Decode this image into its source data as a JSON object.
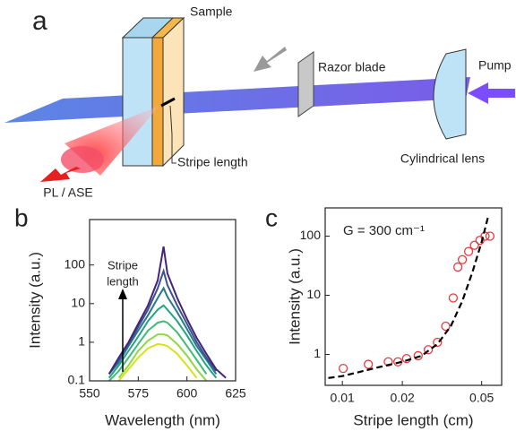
{
  "diagram": {
    "panel_label": "a",
    "sample": "Sample",
    "razor_blade": "Razor blade",
    "pump": "Pump",
    "cylindrical_lens": "Cylindrical lens",
    "stripe_length": "Stripe length",
    "pl_ase": "PL / ASE"
  },
  "chart_data": [
    {
      "type": "line",
      "panel_label": "b",
      "xlabel": "Wavelength (nm)",
      "ylabel": "Intensity (a.u.)",
      "annotation": [
        "Stripe",
        "length"
      ],
      "x": [
        560,
        565,
        570,
        575,
        580,
        585,
        588,
        590,
        595,
        600,
        605,
        610,
        615,
        620
      ],
      "series": [
        {
          "color": "#d8e219",
          "values": [
            null,
            0.1,
            0.2,
            0.4,
            0.7,
            0.9,
            0.85,
            0.8,
            0.5,
            0.25,
            0.12,
            null,
            null,
            null
          ]
        },
        {
          "color": "#8fd744",
          "values": [
            null,
            0.12,
            0.25,
            0.6,
            1.1,
            1.6,
            1.6,
            1.5,
            0.9,
            0.45,
            0.2,
            0.1,
            null,
            null
          ]
        },
        {
          "color": "#3fbc73",
          "values": [
            0.1,
            0.18,
            0.4,
            0.9,
            2,
            3.2,
            3.5,
            3.2,
            1.8,
            0.8,
            0.35,
            0.15,
            null,
            null
          ]
        },
        {
          "color": "#21a386",
          "values": [
            0.12,
            0.25,
            0.6,
            1.4,
            3.5,
            7,
            9,
            7,
            3.5,
            1.5,
            0.6,
            0.25,
            0.12,
            null
          ]
        },
        {
          "color": "#2a788e",
          "values": [
            0.15,
            0.3,
            0.8,
            2,
            5,
            14,
            25,
            15,
            6,
            2.2,
            0.8,
            0.35,
            0.15,
            null
          ]
        },
        {
          "color": "#3b528b",
          "values": [
            0.15,
            0.35,
            0.9,
            2.5,
            7,
            25,
            70,
            30,
            9,
            3,
            1,
            0.4,
            0.18,
            null
          ]
        },
        {
          "color": "#46237a",
          "values": [
            0.15,
            0.4,
            1,
            3,
            9,
            40,
            300,
            60,
            14,
            4,
            1.3,
            0.5,
            0.2,
            0.12
          ]
        }
      ],
      "xlim": [
        550,
        625
      ],
      "xticks": [
        550,
        575,
        600,
        625
      ],
      "ylim": [
        0.1,
        1500
      ],
      "yticks": [
        0.1,
        1,
        10,
        100
      ],
      "ylog": true
    },
    {
      "type": "scatter",
      "panel_label": "c",
      "xlabel": "Stripe length (cm)",
      "ylabel": "Intensity (a.u.)",
      "annotation": "G = 300 cm⁻¹",
      "series": [
        {
          "color": "#e8393c",
          "marker": "circle",
          "x": [
            0.0101,
            0.0135,
            0.017,
            0.019,
            0.021,
            0.024,
            0.027,
            0.03,
            0.033,
            0.036,
            0.038,
            0.04,
            0.043,
            0.046,
            0.049,
            0.052,
            0.055
          ],
          "values": [
            0.58,
            0.68,
            0.75,
            0.75,
            0.85,
            0.95,
            1.2,
            1.6,
            3,
            9,
            30,
            40,
            55,
            70,
            85,
            100,
            100
          ]
        },
        {
          "color": "#000000",
          "line": "dashed",
          "x": [
            0.0085,
            0.01,
            0.012,
            0.015,
            0.02,
            0.025,
            0.03,
            0.035,
            0.04,
            0.045,
            0.05,
            0.054
          ],
          "values": [
            0.4,
            0.43,
            0.5,
            0.6,
            0.75,
            0.95,
            1.5,
            3,
            8,
            25,
            80,
            220
          ]
        }
      ],
      "xlim": [
        0.0082,
        0.063
      ],
      "xticks": [
        0.01,
        0.02,
        0.05
      ],
      "xlog": true,
      "ylim": [
        0.3,
        300
      ],
      "yticks": [
        1,
        10,
        100
      ],
      "ylog": true
    }
  ]
}
